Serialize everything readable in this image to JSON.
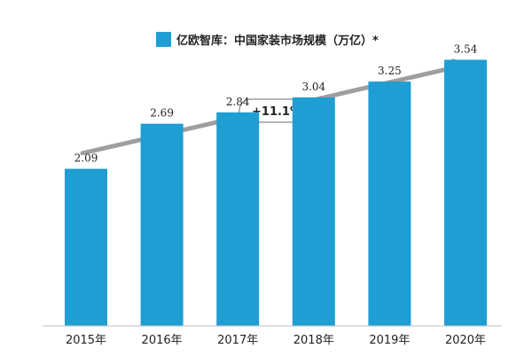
{
  "chart_data": {
    "type": "bar",
    "title": "",
    "xlabel": "",
    "ylabel": "",
    "categories": [
      "2015年",
      "2016年",
      "2017年",
      "2018年",
      "2019年",
      "2020年"
    ],
    "series": [
      {
        "name": "亿欧智库：中国家装市场规模（万亿）*",
        "values": [
          2.09,
          2.69,
          2.84,
          3.04,
          3.25,
          3.54
        ]
      }
    ],
    "ylim": [
      0,
      4.1
    ],
    "grid": false,
    "legend_position": "top-center",
    "annotation": "+11.1%",
    "colors": {
      "bar": "#1f9ed3",
      "arrow": "#9e9e9e",
      "text": "#222222"
    }
  }
}
